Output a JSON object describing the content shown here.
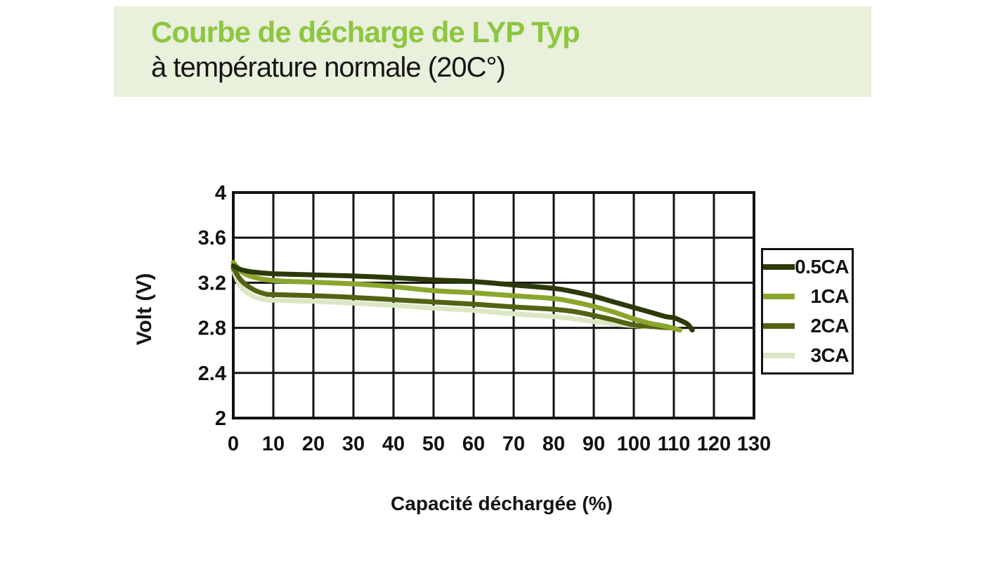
{
  "header": {
    "title": "Courbe de décharge de LYP Typ",
    "subtitle": "à température normale (20C°)"
  },
  "colors": {
    "band_bg": "#e9f0dc",
    "title_green": "#8dc63f",
    "subtitle_text": "#161616",
    "grid": "#131313",
    "tick_text": "#111111"
  },
  "chart_data": {
    "type": "line",
    "title": "Courbe de décharge de LYP Typ à température normale (20C°)",
    "xlabel": "Capacité déchargée (%)",
    "ylabel": "Volt (V)",
    "xlim": [
      0,
      130
    ],
    "ylim": [
      2,
      4
    ],
    "x_ticks": [
      0,
      10,
      20,
      30,
      40,
      50,
      60,
      70,
      80,
      90,
      100,
      110,
      120,
      130
    ],
    "y_ticks": [
      4,
      3.6,
      3.2,
      2.8,
      2.4,
      2
    ],
    "grid": true,
    "legend_position": "right",
    "series": [
      {
        "name": "0.5CA",
        "color": "#2b3a08",
        "points": [
          [
            0,
            3.35
          ],
          [
            2,
            3.315
          ],
          [
            5,
            3.295
          ],
          [
            10,
            3.28
          ],
          [
            20,
            3.27
          ],
          [
            30,
            3.26
          ],
          [
            40,
            3.245
          ],
          [
            50,
            3.225
          ],
          [
            60,
            3.21
          ],
          [
            70,
            3.18
          ],
          [
            80,
            3.15
          ],
          [
            85,
            3.12
          ],
          [
            90,
            3.08
          ],
          [
            95,
            3.03
          ],
          [
            100,
            2.98
          ],
          [
            104,
            2.94
          ],
          [
            108,
            2.9
          ],
          [
            110,
            2.89
          ],
          [
            112,
            2.86
          ],
          [
            113.5,
            2.83
          ],
          [
            114.6,
            2.78
          ]
        ]
      },
      {
        "name": "1CA",
        "color": "#8aa62c",
        "points": [
          [
            0,
            3.38
          ],
          [
            2,
            3.3
          ],
          [
            5,
            3.25
          ],
          [
            10,
            3.22
          ],
          [
            20,
            3.205
          ],
          [
            30,
            3.19
          ],
          [
            40,
            3.165
          ],
          [
            50,
            3.13
          ],
          [
            60,
            3.11
          ],
          [
            70,
            3.085
          ],
          [
            80,
            3.06
          ],
          [
            85,
            3.03
          ],
          [
            90,
            2.99
          ],
          [
            95,
            2.94
          ],
          [
            100,
            2.88
          ],
          [
            104,
            2.84
          ],
          [
            107,
            2.82
          ],
          [
            109.5,
            2.8
          ],
          [
            111.5,
            2.78
          ]
        ]
      },
      {
        "name": "2CA",
        "color": "#526413",
        "points": [
          [
            0,
            3.33
          ],
          [
            2,
            3.22
          ],
          [
            5,
            3.14
          ],
          [
            8,
            3.1
          ],
          [
            10,
            3.095
          ],
          [
            20,
            3.085
          ],
          [
            30,
            3.07
          ],
          [
            40,
            3.05
          ],
          [
            50,
            3.03
          ],
          [
            60,
            3.01
          ],
          [
            70,
            2.985
          ],
          [
            80,
            2.965
          ],
          [
            85,
            2.945
          ],
          [
            90,
            2.91
          ],
          [
            95,
            2.87
          ],
          [
            100,
            2.825
          ],
          [
            104,
            2.815
          ],
          [
            107,
            2.805
          ],
          [
            109.4,
            2.8
          ]
        ]
      },
      {
        "name": "3CA",
        "color": "#dbe7c4",
        "points": [
          [
            0,
            3.31
          ],
          [
            2,
            3.16
          ],
          [
            5,
            3.08
          ],
          [
            8,
            3.05
          ],
          [
            10,
            3.045
          ],
          [
            20,
            3.035
          ],
          [
            30,
            3.02
          ],
          [
            40,
            3.0
          ],
          [
            50,
            2.975
          ],
          [
            60,
            2.955
          ],
          [
            70,
            2.925
          ],
          [
            80,
            2.9
          ],
          [
            85,
            2.88
          ],
          [
            90,
            2.855
          ],
          [
            95,
            2.835
          ],
          [
            100,
            2.82
          ],
          [
            103.5,
            2.81
          ]
        ]
      }
    ]
  }
}
